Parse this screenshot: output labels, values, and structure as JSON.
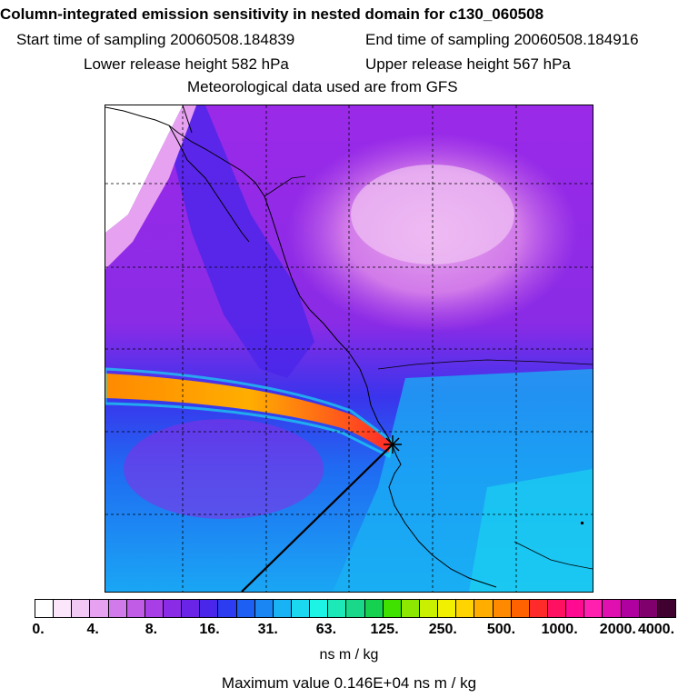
{
  "header": {
    "title": "Column-integrated emission sensitivity in nested domain for c130_060508",
    "start_label": "Start time of sampling 20060508.184839",
    "end_label": "End time of sampling 20060508.184916",
    "lower_label": "Lower release height  582 hPa",
    "upper_label": "Upper release height  567 hPa",
    "met_label": "Meteorological data used are from GFS"
  },
  "colorbar": {
    "colors": [
      "#ffffff",
      "#fbe6fb",
      "#f2c8f5",
      "#e6a2f0",
      "#d17ae9",
      "#c05ce6",
      "#a83ee6",
      "#8a2be6",
      "#6a24e8",
      "#4a26ea",
      "#2c3cf0",
      "#1d5ff2",
      "#1a86f4",
      "#19b2f4",
      "#1ad8f0",
      "#1ef4e6",
      "#1de8b8",
      "#1ad88a",
      "#16d050",
      "#40e000",
      "#8ce800",
      "#c8f000",
      "#f0f000",
      "#ffd400",
      "#ffae00",
      "#ff8a00",
      "#ff6200",
      "#ff2a2a",
      "#ff1060",
      "#ff0a90",
      "#ff20b0",
      "#e010b0",
      "#b000a0",
      "#80006e",
      "#400030"
    ],
    "tick_labels": [
      "0.",
      "4.",
      "8.",
      "16.",
      "31.",
      "63.",
      "125.",
      "250.",
      "500.",
      "1000.",
      "2000.",
      "4000."
    ],
    "units": "ns m / kg",
    "max_value_label": "Maximum value  0.146E+04 ns m / kg"
  },
  "map": {
    "release_marker": "release-point-cross-icon"
  }
}
